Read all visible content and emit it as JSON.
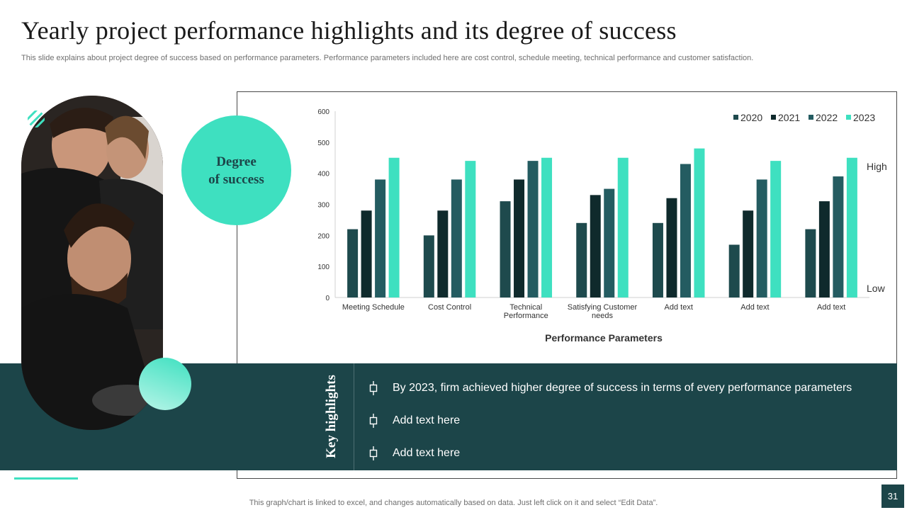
{
  "header": {
    "title": "Yearly project performance highlights and its degree of success",
    "subtitle": "This slide explains about project degree of success based on performance parameters. Performance parameters included here are cost control, schedule meeting, technical performance and customer satisfaction."
  },
  "degree_badge": {
    "line1": "Degree",
    "line2": "of success"
  },
  "highlights": {
    "heading": "Key highlights",
    "items": [
      "By 2023, firm achieved higher degree of success in terms of every performance parameters",
      "Add text here",
      "Add text here"
    ]
  },
  "footer": {
    "note": "This graph/chart is linked to excel,  and changes automatically based on data. Just left click on it and select “Edit Data”.",
    "page_number": "31"
  },
  "colors": {
    "dark_teal": "#1c4549",
    "accent": "#3ee0c0",
    "series": [
      "#1e4a4d",
      "#0f2a2c",
      "#245c61",
      "#3ee0c0"
    ]
  },
  "chart_data": {
    "type": "bar",
    "xlabel": "Performance Parameters",
    "ylabel": "",
    "ylim": [
      0,
      600
    ],
    "yticks": [
      0,
      100,
      200,
      300,
      400,
      500,
      600
    ],
    "categories": [
      [
        "Meeting Schedule"
      ],
      [
        "Cost Control"
      ],
      [
        "Technical",
        "Performance"
      ],
      [
        "Satisfying Customer",
        "needs"
      ],
      [
        "Add text"
      ],
      [
        "Add text"
      ],
      [
        "Add text"
      ]
    ],
    "series": [
      {
        "name": "2020",
        "values": [
          220,
          200,
          310,
          240,
          240,
          170,
          220
        ]
      },
      {
        "name": "2021",
        "values": [
          280,
          280,
          380,
          330,
          320,
          280,
          310
        ]
      },
      {
        "name": "2022",
        "values": [
          380,
          380,
          440,
          350,
          430,
          380,
          390
        ]
      },
      {
        "name": "2023",
        "values": [
          450,
          440,
          450,
          450,
          480,
          440,
          450
        ]
      }
    ],
    "legend_position": "top-right",
    "side_labels": {
      "high": "High",
      "low": "Low"
    },
    "grid": false
  }
}
